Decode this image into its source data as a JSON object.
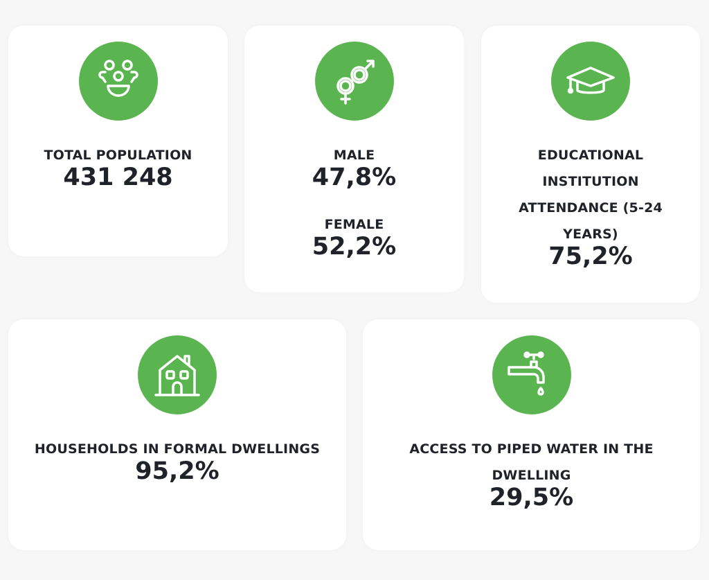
{
  "colors": {
    "accent": "#5ab550",
    "background": "#f7f7f7",
    "text": "#1f2228"
  },
  "cards": [
    {
      "icon": "people-icon",
      "label": "TOTAL POPULATION",
      "value": "431 248"
    },
    {
      "icon": "gender-icon",
      "male_label": "MALE",
      "male_value": "47,8%",
      "female_label": "FEMALE",
      "female_value": "52,2%"
    },
    {
      "icon": "graduation-cap-icon",
      "label_lines": [
        "EDUCATIONAL",
        "INSTITUTION",
        "ATTENDANCE (5-24",
        "YEARS)"
      ],
      "value": "75,2%"
    },
    {
      "icon": "house-icon",
      "label": "HOUSEHOLDS IN FORMAL DWELLINGS",
      "value": "95,2%"
    },
    {
      "icon": "water-tap-icon",
      "label_lines": [
        "ACCESS TO PIPED WATER IN THE",
        "DWELLING"
      ],
      "value": "29,5%"
    }
  ]
}
